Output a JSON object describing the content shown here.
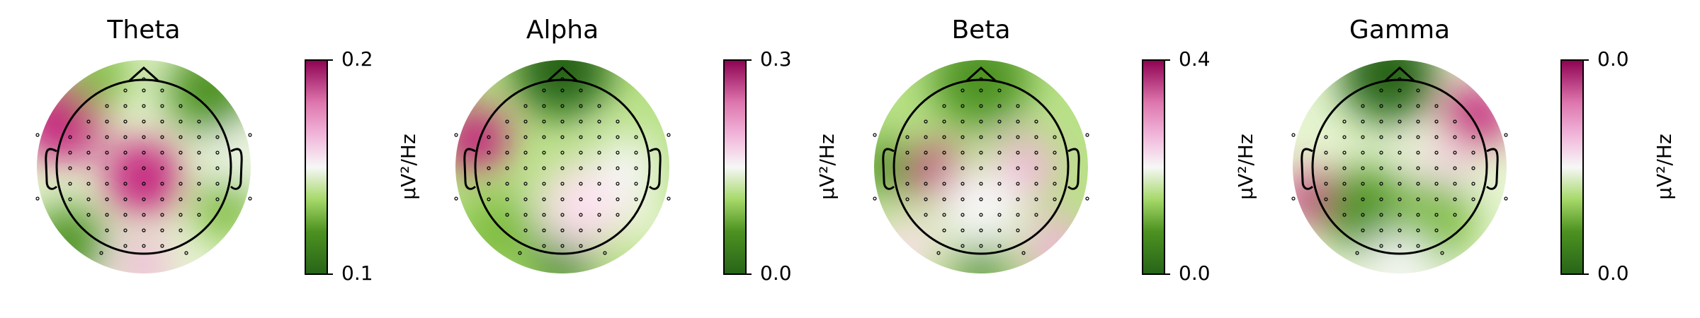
{
  "chart_data": [
    {
      "type": "topomap",
      "title": "Theta",
      "colorbar_label": "µV²/Hz",
      "clim": [
        0.1,
        0.2
      ],
      "cticks": [
        0.1,
        0.2
      ]
    },
    {
      "type": "topomap",
      "title": "Alpha",
      "colorbar_label": "µV²/Hz",
      "clim": [
        0,
        0.3
      ],
      "cticks": [
        {
          "value": 0,
          "label": "0.0"
        },
        0.3
      ]
    },
    {
      "type": "topomap",
      "title": "Beta",
      "colorbar_label": "µV²/Hz",
      "clim": [
        0,
        0.4
      ],
      "cticks": [
        {
          "value": 0,
          "label": "0.0"
        },
        0.4
      ]
    },
    {
      "type": "topomap",
      "title": "Gamma",
      "colorbar_label": "µV²/Hz",
      "clim": [
        0,
        0.04
      ],
      "cticks": [
        {
          "value": 0,
          "label": "0.0"
        },
        {
          "value": 0.04,
          "label": "0.0"
        }
      ]
    }
  ]
}
